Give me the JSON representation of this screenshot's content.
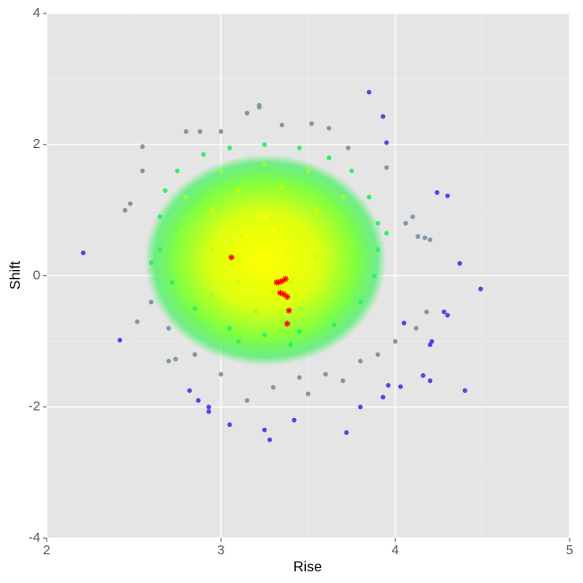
{
  "chart_data": {
    "type": "scatter",
    "x_label": "Rise",
    "y_label": "Shift",
    "xlim": [
      2,
      5
    ],
    "ylim": [
      -4,
      4
    ],
    "xticks": [
      2,
      3,
      4,
      5
    ],
    "yticks": [
      -4,
      -2,
      0,
      2,
      4
    ],
    "grid": true,
    "series": [
      {
        "color": "#5f3fe6",
        "marker": "circle",
        "x": [
          2.21,
          2.42,
          3.85,
          3.93,
          3.95,
          4.49,
          4.4,
          4.37,
          4.3,
          4.24,
          4.2,
          4.16,
          4.03,
          4.21,
          4.2,
          4.28,
          4.3,
          3.72,
          3.05,
          2.93,
          2.93,
          3.28,
          3.25,
          3.42,
          2.82,
          2.87,
          3.96,
          4.05,
          3.93,
          3.8
        ],
        "y": [
          0.35,
          -0.98,
          2.8,
          2.43,
          2.03,
          -0.2,
          -1.75,
          0.19,
          1.22,
          1.27,
          -1.6,
          -1.52,
          -1.69,
          -1.0,
          -1.05,
          -0.55,
          -0.6,
          -2.39,
          -2.27,
          -2.0,
          -2.07,
          -2.5,
          -2.35,
          -2.2,
          -1.75,
          -1.9,
          -1.67,
          -0.72,
          -1.85,
          -2.0
        ]
      },
      {
        "color": "#7d98a6",
        "marker": "circle",
        "x": [
          2.55,
          2.45,
          2.48,
          2.55,
          2.52,
          2.6,
          2.7,
          2.74,
          2.8,
          2.88,
          3.0,
          3.15,
          3.22,
          3.22,
          3.35,
          3.52,
          3.62,
          3.73,
          3.95,
          4.06,
          4.13,
          4.17,
          4.2,
          4.1,
          4.18,
          4.12,
          3.9,
          3.6,
          3.3,
          3.0,
          2.85,
          3.5,
          3.7,
          3.15,
          2.7,
          3.8,
          4.0,
          3.45
        ],
        "y": [
          1.97,
          1.0,
          1.1,
          1.6,
          -0.7,
          -0.4,
          -1.3,
          -1.27,
          2.2,
          2.2,
          2.2,
          2.48,
          2.57,
          2.6,
          2.3,
          2.32,
          2.25,
          1.95,
          1.65,
          0.8,
          0.6,
          0.58,
          0.55,
          0.9,
          -0.55,
          -0.8,
          -1.2,
          -1.5,
          -1.7,
          -1.5,
          -1.2,
          -1.8,
          -1.6,
          -1.9,
          -0.8,
          -1.3,
          -1.0,
          -1.55
        ]
      },
      {
        "color": "#33ee66",
        "marker": "circle",
        "x": [
          2.68,
          2.75,
          2.9,
          3.05,
          3.25,
          3.45,
          3.62,
          3.75,
          3.85,
          3.9,
          3.9,
          3.88,
          3.8,
          3.65,
          3.45,
          3.25,
          3.05,
          2.85,
          2.72,
          2.65,
          2.65,
          2.6,
          3.95,
          3.4,
          3.1
        ],
        "y": [
          1.3,
          1.6,
          1.85,
          1.95,
          2.0,
          1.95,
          1.8,
          1.6,
          1.2,
          0.8,
          0.4,
          0.0,
          -0.4,
          -0.75,
          -0.85,
          -0.9,
          -0.8,
          -0.5,
          -0.1,
          0.4,
          0.9,
          0.2,
          0.65,
          -1.05,
          -1.0
        ]
      },
      {
        "color": "#99ff33",
        "marker": "circle",
        "x": [
          2.8,
          3.0,
          3.25,
          3.5,
          3.7,
          3.75,
          3.65,
          3.45,
          3.2,
          2.95,
          2.8,
          2.78
        ],
        "y": [
          1.2,
          1.6,
          1.7,
          1.6,
          1.2,
          0.5,
          -0.1,
          -0.5,
          -0.55,
          -0.3,
          0.2,
          0.7
        ]
      },
      {
        "color": "#ccff00",
        "marker": "circle",
        "x": [
          2.95,
          3.1,
          3.35,
          3.55,
          3.55,
          3.4,
          3.1,
          2.95
        ],
        "y": [
          1.0,
          1.3,
          1.35,
          1.0,
          0.3,
          -0.1,
          -0.1,
          0.4
        ]
      },
      {
        "color": "#ffff00",
        "marker": "circle",
        "x": [
          3.15,
          3.25,
          3.3,
          3.2,
          3.35,
          3.1,
          3.25,
          3.22
        ],
        "y": [
          0.6,
          0.45,
          0.7,
          0.3,
          0.4,
          0.4,
          0.9,
          0.1
        ]
      },
      {
        "color": "#ff0000",
        "marker": "star",
        "x": [
          3.06,
          3.33,
          3.35,
          3.37,
          3.34,
          3.36,
          3.38,
          3.39,
          3.38,
          3.32
        ],
        "y": [
          0.28,
          -0.1,
          -0.08,
          -0.05,
          -0.26,
          -0.28,
          -0.32,
          -0.53,
          -0.73,
          -0.1
        ]
      }
    ]
  }
}
